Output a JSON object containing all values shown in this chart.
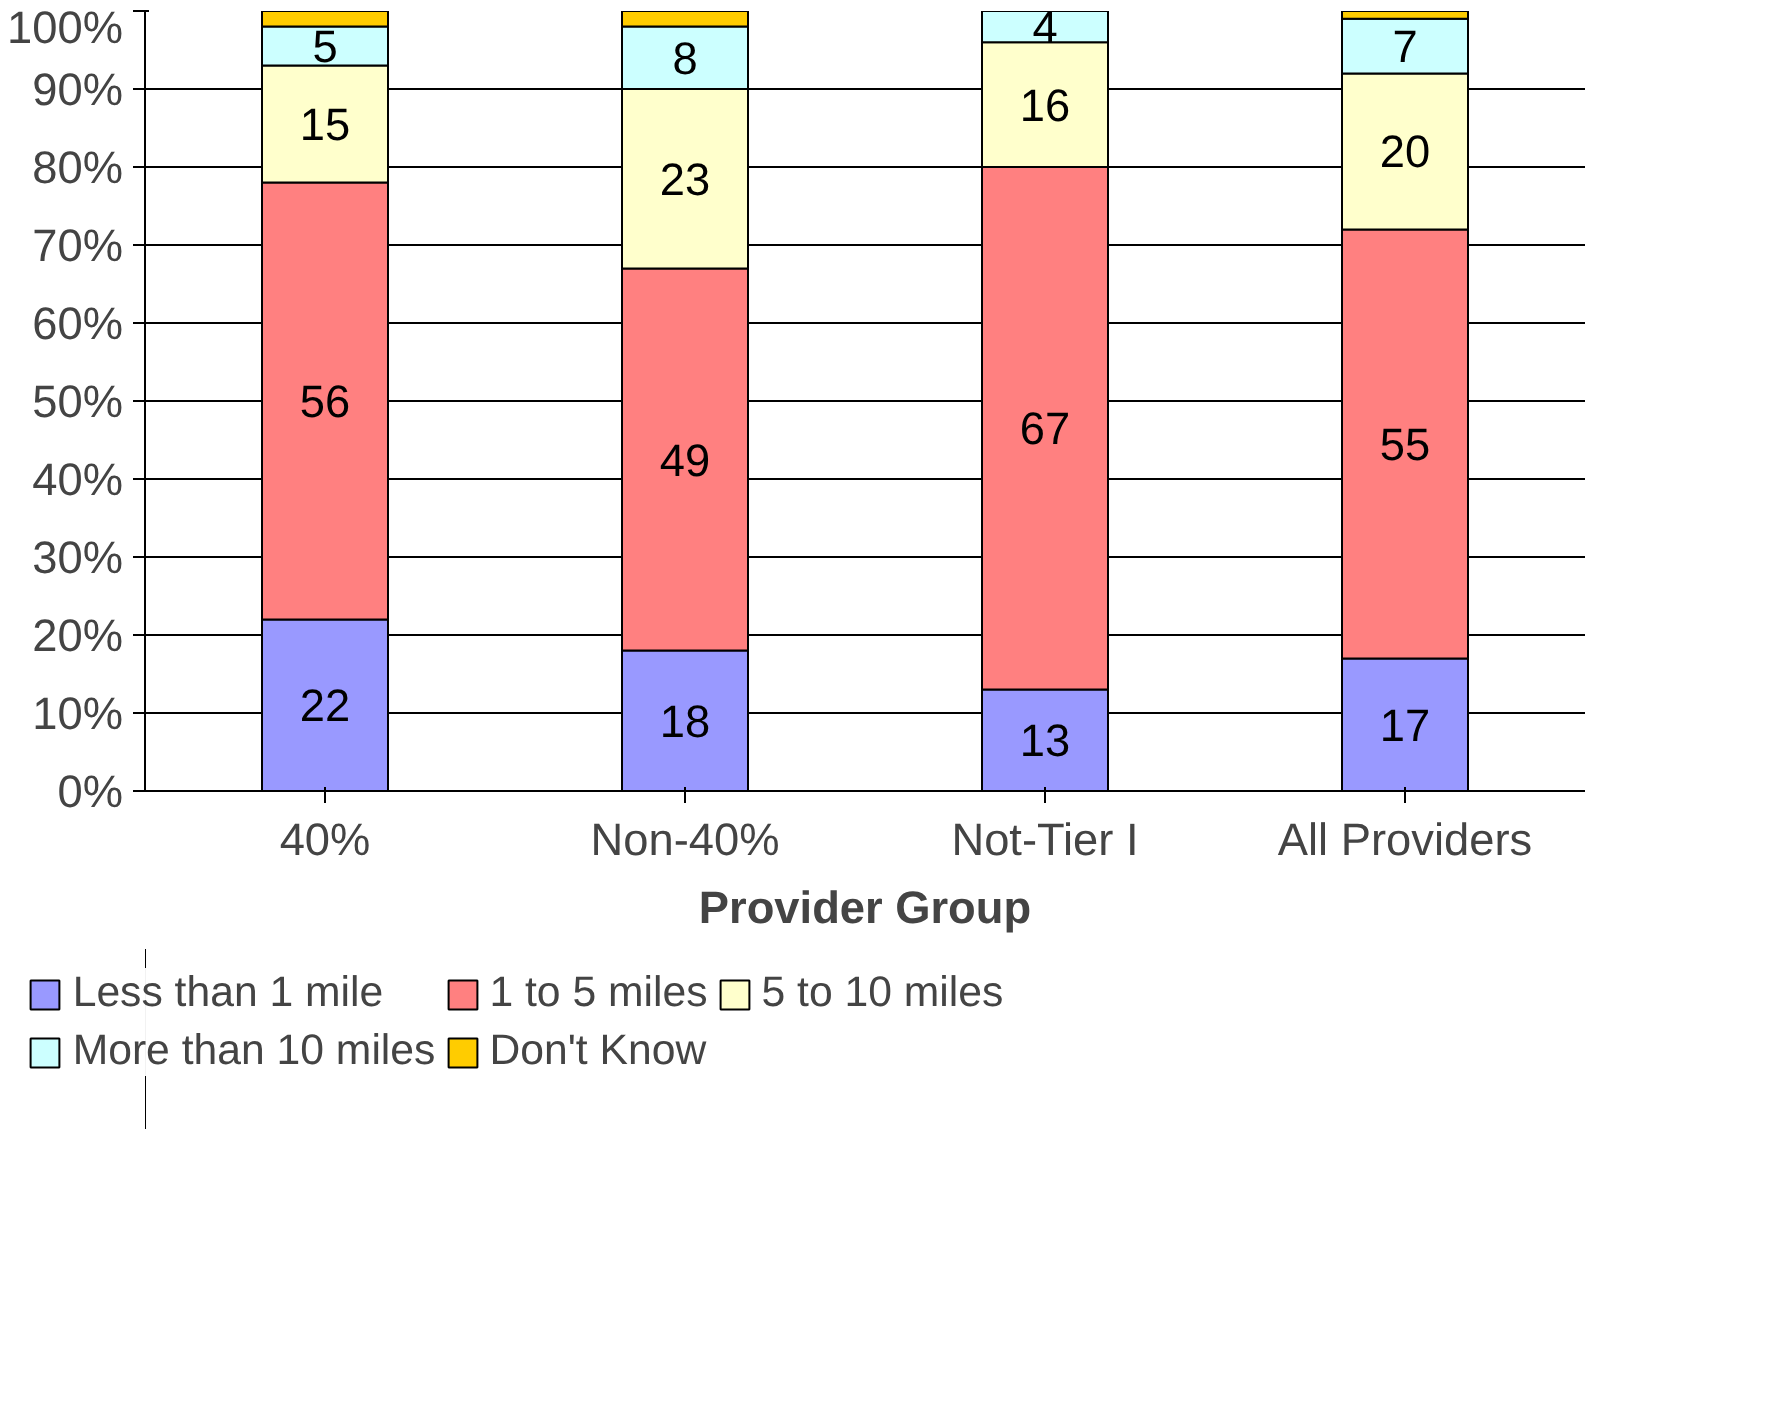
{
  "chart_data": {
    "type": "bar",
    "stacked": true,
    "xlabel": "Provider Group",
    "categories": [
      "40%",
      "Non-40%",
      "Not-Tier I",
      "All Providers"
    ],
    "ylim": [
      0,
      100
    ],
    "yticks": [
      {
        "value": 0,
        "label": "0%"
      },
      {
        "value": 10,
        "label": "10%"
      },
      {
        "value": 20,
        "label": "20%"
      },
      {
        "value": 30,
        "label": "30%"
      },
      {
        "value": 40,
        "label": "40%"
      },
      {
        "value": 50,
        "label": "50%"
      },
      {
        "value": 60,
        "label": "60%"
      },
      {
        "value": 70,
        "label": "70%"
      },
      {
        "value": 80,
        "label": "80%"
      },
      {
        "value": 90,
        "label": "90%"
      },
      {
        "value": 100,
        "label": "100%"
      }
    ],
    "grid": "y",
    "legend": "bottom",
    "series": [
      {
        "name": "Less than 1 mile",
        "color": "#9999ff",
        "values": [
          22,
          18,
          13,
          17
        ],
        "value_labels": [
          "22",
          "18",
          "13",
          "17"
        ]
      },
      {
        "name": "1 to 5 miles",
        "color": "#ff8080",
        "values": [
          56,
          49,
          67,
          55
        ],
        "value_labels": [
          "56",
          "49",
          "67",
          "55"
        ]
      },
      {
        "name": "5 to 10 miles",
        "color": "#ffffcc",
        "values": [
          15,
          23,
          16,
          20
        ],
        "value_labels": [
          "15",
          "23",
          "16",
          "20"
        ]
      },
      {
        "name": "More than 10 miles",
        "color": "#ccffff",
        "values": [
          5,
          8,
          4,
          7
        ],
        "value_labels": [
          "5",
          "8",
          "4",
          "7"
        ]
      },
      {
        "name": "Don't Know",
        "color": "#ffcc00",
        "values": [
          2,
          2,
          null,
          1
        ]
      }
    ]
  }
}
